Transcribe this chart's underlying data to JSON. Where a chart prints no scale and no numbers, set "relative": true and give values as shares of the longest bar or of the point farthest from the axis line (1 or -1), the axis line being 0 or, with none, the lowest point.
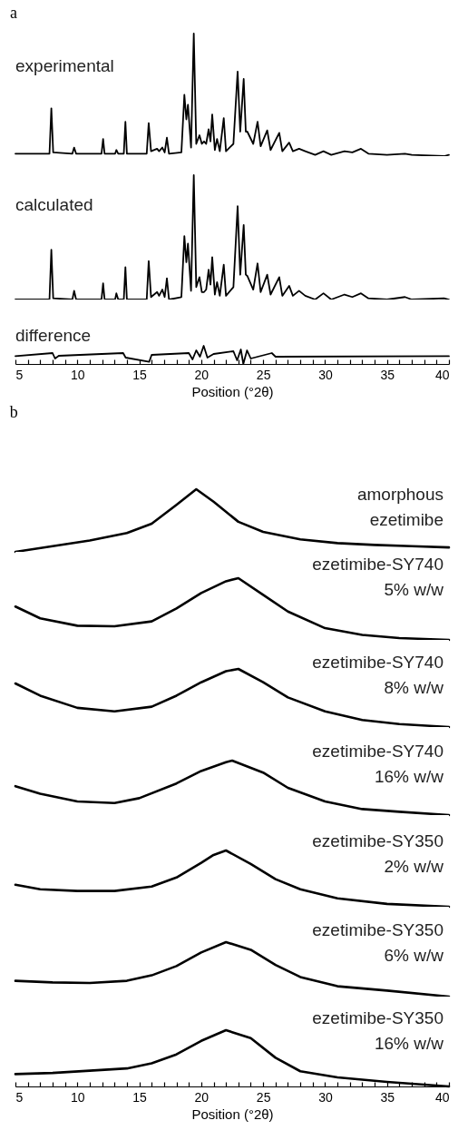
{
  "chart_data": [
    {
      "type": "line",
      "title": "a",
      "relative": true,
      "xlim": [
        5,
        40
      ],
      "tick_labels": false,
      "x": [
        5,
        7.75,
        7.9,
        8.05,
        9.6,
        9.74,
        9.9,
        11.95,
        12.08,
        12.2,
        13.05,
        13.15,
        13.3,
        13.75,
        13.88,
        14.0,
        15.6,
        15.76,
        15.95,
        16.44,
        16.6,
        16.86,
        17.05,
        17.23,
        17.4,
        18.4,
        18.64,
        18.8,
        18.93,
        19.18,
        19.4,
        19.6,
        19.86,
        20.05,
        20.23,
        20.4,
        20.6,
        20.75,
        20.89,
        21.1,
        21.28,
        21.5,
        21.82,
        22.0,
        22.6,
        22.94,
        23.15,
        23.43,
        23.6,
        23.72,
        24.2,
        24.55,
        24.8,
        25.33,
        25.6,
        26.3,
        26.55,
        27.1,
        27.4,
        27.9,
        28.4,
        29.2,
        29.87,
        30.5,
        31.57,
        32.2,
        32.9,
        33.5,
        35,
        36.45,
        37,
        39.6,
        40
      ],
      "series": [
        {
          "name": "experimental",
          "color": "#000000",
          "values": [
            0.02,
            0.02,
            0.39,
            0.03,
            0.02,
            0.07,
            0.02,
            0.02,
            0.14,
            0.02,
            0.02,
            0.05,
            0.02,
            0.02,
            0.28,
            0.02,
            0.02,
            0.27,
            0.04,
            0.06,
            0.04,
            0.07,
            0.03,
            0.15,
            0.02,
            0.03,
            0.5,
            0.3,
            0.42,
            0.07,
            1.0,
            0.1,
            0.17,
            0.1,
            0.12,
            0.1,
            0.22,
            0.12,
            0.34,
            0.05,
            0.14,
            0.04,
            0.31,
            0.04,
            0.1,
            0.69,
            0.2,
            0.63,
            0.2,
            0.2,
            0.1,
            0.28,
            0.08,
            0.21,
            0.05,
            0.19,
            0.04,
            0.11,
            0.04,
            0.06,
            0.04,
            0.01,
            0.04,
            0.01,
            0.04,
            0.03,
            0.06,
            0.02,
            0.01,
            0.02,
            0.01,
            0,
            0.01
          ]
        }
      ]
    },
    {
      "type": "line",
      "relative": true,
      "xlim": [
        5,
        40
      ],
      "tick_labels": false,
      "x": [
        5,
        7.75,
        7.9,
        8.05,
        9.6,
        9.74,
        9.9,
        11.95,
        12.08,
        12.2,
        13.05,
        13.15,
        13.3,
        13.75,
        13.88,
        14.0,
        15.6,
        15.76,
        15.95,
        16.44,
        16.6,
        16.86,
        17.05,
        17.23,
        17.4,
        18.4,
        18.64,
        18.8,
        18.93,
        19.18,
        19.4,
        19.6,
        19.86,
        20.05,
        20.23,
        20.4,
        20.6,
        20.75,
        20.89,
        21.1,
        21.28,
        21.5,
        21.82,
        22.0,
        22.6,
        22.94,
        23.15,
        23.43,
        23.6,
        23.72,
        24.2,
        24.55,
        24.8,
        25.33,
        25.6,
        26.3,
        26.55,
        27.1,
        27.4,
        27.9,
        28.4,
        29.2,
        29.87,
        30.5,
        31.57,
        32.2,
        32.9,
        33.5,
        35,
        36.45,
        37,
        39.6,
        40
      ],
      "series": [
        {
          "name": "calculated",
          "color": "#000000",
          "values": [
            0,
            0,
            0.4,
            0.01,
            0,
            0.07,
            0,
            0,
            0.13,
            0,
            0,
            0.05,
            0,
            0,
            0.26,
            0,
            0,
            0.31,
            0.02,
            0.06,
            0.03,
            0.08,
            0.02,
            0.17,
            0,
            0.02,
            0.51,
            0.3,
            0.45,
            0.07,
            1.0,
            0.1,
            0.18,
            0.06,
            0.06,
            0.08,
            0.24,
            0.12,
            0.34,
            0.04,
            0.14,
            0.03,
            0.28,
            0.03,
            0.1,
            0.75,
            0.2,
            0.6,
            0.2,
            0.19,
            0.08,
            0.29,
            0.06,
            0.2,
            0.04,
            0.18,
            0.03,
            0.11,
            0.03,
            0.07,
            0.03,
            0,
            0.05,
            0,
            0.04,
            0.02,
            0.05,
            0.01,
            0,
            0.02,
            0,
            0.01,
            0
          ]
        }
      ]
    },
    {
      "type": "line",
      "relative": true,
      "xlim": [
        5,
        40
      ],
      "tick_labels": "x",
      "xlabel": "Position (°2θ)",
      "xticks": [
        5,
        {
          "value": 6,
          "label": null
        },
        {
          "value": 7,
          "label": null
        },
        {
          "value": 8,
          "label": null
        },
        {
          "value": 9,
          "label": null
        },
        10,
        {
          "value": 11,
          "label": null
        },
        {
          "value": 12,
          "label": null
        },
        {
          "value": 13,
          "label": null
        },
        {
          "value": 14,
          "label": null
        },
        15,
        {
          "value": 16,
          "label": null
        },
        {
          "value": 17,
          "label": null
        },
        {
          "value": 18,
          "label": null
        },
        {
          "value": 19,
          "label": null
        },
        20,
        {
          "value": 21,
          "label": null
        },
        {
          "value": 22,
          "label": null
        },
        {
          "value": 23,
          "label": null
        },
        {
          "value": 24,
          "label": null
        },
        25,
        {
          "value": 26,
          "label": null
        },
        {
          "value": 27,
          "label": null
        },
        {
          "value": 28,
          "label": null
        },
        {
          "value": 29,
          "label": null
        },
        30,
        {
          "value": 31,
          "label": null
        },
        {
          "value": 32,
          "label": null
        },
        {
          "value": 33,
          "label": null
        },
        {
          "value": 34,
          "label": null
        },
        35,
        {
          "value": 36,
          "label": null
        },
        {
          "value": 37,
          "label": null
        },
        {
          "value": 38,
          "label": null
        },
        {
          "value": 39,
          "label": null
        },
        40
      ],
      "x": [
        5,
        8.0,
        8.2,
        8.5,
        13.7,
        13.9,
        15.8,
        16,
        19,
        19.3,
        19.6,
        19.9,
        20.2,
        20.5,
        21,
        22.6,
        22.9,
        23.2,
        23.4,
        23.7,
        24,
        25.7,
        26,
        40
      ],
      "series": [
        {
          "name": "difference",
          "color": "#000000",
          "values": [
            0.43,
            0.6,
            0.3,
            0.45,
            0.6,
            0.35,
            0.12,
            0.5,
            0.6,
            0.25,
            0.75,
            0.4,
            1.0,
            0.35,
            0.55,
            0.7,
            0.2,
            0.8,
            0,
            0.75,
            0.3,
            0.6,
            0.4,
            0.43
          ]
        }
      ]
    },
    {
      "type": "line",
      "title": "b",
      "relative": true,
      "xlim": [
        5,
        40
      ],
      "tick_labels": false,
      "x": [
        5,
        8,
        11,
        14,
        16,
        18,
        19.6,
        21,
        23,
        25,
        28,
        31,
        34,
        37,
        40
      ],
      "series": [
        {
          "name": "amorphous ezetimibe",
          "color": "#000000",
          "values": [
            0,
            0.09,
            0.18,
            0.3,
            0.45,
            0.75,
            1.0,
            0.8,
            0.48,
            0.32,
            0.2,
            0.14,
            0.11,
            0.09,
            0.07
          ]
        }
      ]
    },
    {
      "type": "line",
      "relative": true,
      "xlim": [
        5,
        40
      ],
      "tick_labels": false,
      "x": [
        5,
        7,
        10,
        13,
        16,
        18,
        20,
        22,
        23,
        25,
        27,
        30,
        33,
        36,
        40
      ],
      "series": [
        {
          "name": "ezetimibe-SY740 5% w/w",
          "color": "#000000",
          "values": [
            0.54,
            0.35,
            0.23,
            0.22,
            0.3,
            0.51,
            0.76,
            0.95,
            1.0,
            0.73,
            0.46,
            0.19,
            0.08,
            0.03,
            0
          ]
        }
      ]
    },
    {
      "type": "line",
      "relative": true,
      "xlim": [
        5,
        40
      ],
      "tick_labels": false,
      "x": [
        5,
        7,
        10,
        13,
        16,
        18,
        20,
        22,
        23,
        25,
        27,
        30,
        33,
        36,
        40
      ],
      "series": [
        {
          "name": "ezetimibe-SY740 8% w/w",
          "color": "#000000",
          "values": [
            0.75,
            0.54,
            0.33,
            0.27,
            0.35,
            0.54,
            0.77,
            0.96,
            1.0,
            0.77,
            0.51,
            0.27,
            0.12,
            0.05,
            0
          ]
        }
      ]
    },
    {
      "type": "line",
      "relative": true,
      "xlim": [
        5,
        40
      ],
      "tick_labels": false,
      "x": [
        5,
        7,
        10,
        13,
        15,
        18,
        20,
        22,
        22.5,
        25,
        27,
        30,
        33,
        36,
        40
      ],
      "series": [
        {
          "name": "ezetimibe-SY740 16% w/w",
          "color": "#000000",
          "values": [
            0.53,
            0.39,
            0.25,
            0.22,
            0.31,
            0.58,
            0.81,
            0.97,
            1.0,
            0.78,
            0.5,
            0.25,
            0.11,
            0.06,
            0
          ]
        }
      ]
    },
    {
      "type": "line",
      "relative": true,
      "xlim": [
        5,
        40
      ],
      "tick_labels": false,
      "x": [
        5,
        7,
        10,
        13,
        16,
        18,
        20,
        21,
        22,
        24,
        26,
        28,
        31,
        35,
        40
      ],
      "series": [
        {
          "name": "ezetimibe-SY350 2% w/w",
          "color": "#000000",
          "values": [
            0.39,
            0.31,
            0.28,
            0.28,
            0.36,
            0.52,
            0.78,
            0.92,
            1.0,
            0.76,
            0.49,
            0.31,
            0.15,
            0.05,
            0
          ]
        }
      ]
    },
    {
      "type": "line",
      "relative": true,
      "xlim": [
        5,
        40
      ],
      "tick_labels": false,
      "x": [
        5,
        8,
        11,
        14,
        16,
        18,
        20,
        22,
        24,
        26,
        28,
        31,
        35,
        40
      ],
      "series": [
        {
          "name": "ezetimibe-SY350 6% w/w",
          "color": "#000000",
          "values": [
            0.29,
            0.26,
            0.25,
            0.29,
            0.39,
            0.56,
            0.81,
            1.0,
            0.86,
            0.58,
            0.36,
            0.19,
            0.11,
            0
          ]
        }
      ]
    },
    {
      "type": "line",
      "relative": true,
      "xlim": [
        5,
        40
      ],
      "tick_labels": "x",
      "xlabel": "Position (°2θ)",
      "xticks": [
        5,
        {
          "value": 6,
          "label": null
        },
        {
          "value": 7,
          "label": null
        },
        {
          "value": 8,
          "label": null
        },
        {
          "value": 9,
          "label": null
        },
        10,
        {
          "value": 11,
          "label": null
        },
        {
          "value": 12,
          "label": null
        },
        {
          "value": 13,
          "label": null
        },
        {
          "value": 14,
          "label": null
        },
        15,
        {
          "value": 16,
          "label": null
        },
        {
          "value": 17,
          "label": null
        },
        {
          "value": 18,
          "label": null
        },
        {
          "value": 19,
          "label": null
        },
        20,
        {
          "value": 21,
          "label": null
        },
        {
          "value": 22,
          "label": null
        },
        {
          "value": 23,
          "label": null
        },
        {
          "value": 24,
          "label": null
        },
        25,
        {
          "value": 26,
          "label": null
        },
        {
          "value": 27,
          "label": null
        },
        {
          "value": 28,
          "label": null
        },
        {
          "value": 29,
          "label": null
        },
        30,
        {
          "value": 31,
          "label": null
        },
        {
          "value": 32,
          "label": null
        },
        {
          "value": 33,
          "label": null
        },
        {
          "value": 34,
          "label": null
        },
        35,
        {
          "value": 36,
          "label": null
        },
        {
          "value": 37,
          "label": null
        },
        {
          "value": 38,
          "label": null
        },
        {
          "value": 39,
          "label": null
        },
        40
      ],
      "x": [
        5,
        8,
        11,
        14,
        16,
        18,
        20,
        22,
        24,
        26,
        28,
        31,
        35,
        40
      ],
      "series": [
        {
          "name": "ezetimibe-SY350 16% w/w",
          "color": "#000000",
          "values": [
            0.22,
            0.24,
            0.28,
            0.32,
            0.41,
            0.57,
            0.81,
            1.0,
            0.86,
            0.51,
            0.27,
            0.16,
            0.08,
            0
          ]
        }
      ]
    }
  ]
}
